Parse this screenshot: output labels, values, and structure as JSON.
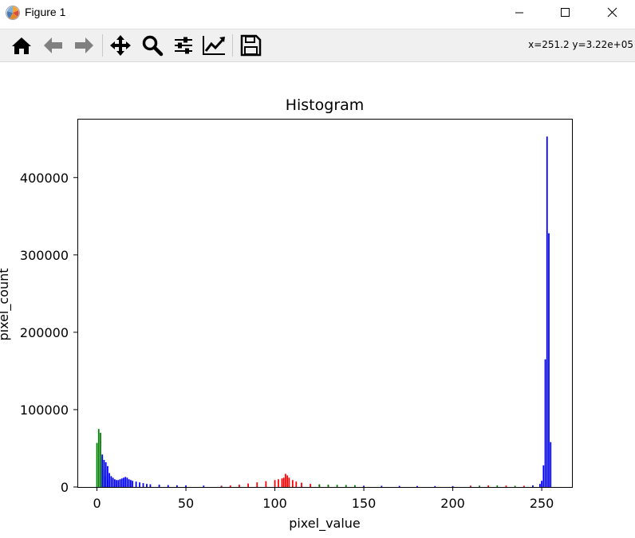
{
  "window": {
    "title": "Figure 1",
    "controls": [
      "minimize",
      "maximize",
      "close"
    ]
  },
  "toolbar": {
    "buttons": [
      "home-icon",
      "back-arrow-icon",
      "forward-arrow-icon",
      "pan-icon",
      "zoom-icon",
      "configure-subplots-icon",
      "edit-axis-icon",
      "save-icon"
    ],
    "coordinates": "x=251.2 y=3.22e+05"
  },
  "chart_data": {
    "type": "bar",
    "title": "Histogram",
    "xlabel": "pixel_value",
    "ylabel": "pixel_count",
    "xlim": [
      -11,
      267
    ],
    "ylim": [
      0,
      476000
    ],
    "xticks": [
      0,
      50,
      100,
      150,
      200,
      250
    ],
    "yticks": [
      0,
      100000,
      200000,
      300000,
      400000
    ],
    "grid": false,
    "legend": "none",
    "series": [
      {
        "color": "#008000",
        "x": [
          0,
          1,
          2,
          3,
          4,
          5,
          6
        ],
        "values": [
          57000,
          75000,
          70000,
          40000,
          22000,
          14000,
          9000
        ]
      },
      {
        "color": "#0000ff",
        "x": [
          3,
          4,
          5,
          6,
          7,
          8,
          9,
          10,
          11,
          12,
          13,
          14,
          15,
          16,
          17,
          18,
          19,
          20,
          22,
          24,
          26,
          28,
          30,
          35,
          40,
          45,
          50,
          60,
          70,
          150,
          160,
          170,
          180,
          190,
          200,
          240,
          245,
          249,
          250,
          251,
          252,
          253,
          254,
          255
        ],
        "values": [
          42000,
          35000,
          32000,
          27000,
          18000,
          14000,
          12000,
          10000,
          9000,
          9000,
          10000,
          11000,
          12000,
          13000,
          12000,
          10000,
          9000,
          8000,
          7000,
          6000,
          5000,
          4000,
          3500,
          3000,
          2500,
          2200,
          2000,
          1800,
          1600,
          1600,
          1500,
          1400,
          1300,
          1200,
          1200,
          1500,
          2000,
          4000,
          8000,
          28000,
          165000,
          453000,
          328000,
          58000
        ]
      },
      {
        "color": "#ff0000",
        "x": [
          70,
          75,
          80,
          85,
          90,
          95,
          100,
          102,
          104,
          105,
          106,
          107,
          108,
          110,
          112,
          115,
          120,
          125,
          130,
          210,
          220,
          230,
          240
        ],
        "values": [
          1200,
          2000,
          3000,
          4500,
          6000,
          7500,
          9000,
          10000,
          11000,
          12000,
          17000,
          15000,
          12000,
          9000,
          7000,
          5500,
          4000,
          3000,
          2200,
          1800,
          2000,
          1800,
          1500
        ]
      },
      {
        "color": "#008000",
        "x": [
          125,
          130,
          135,
          140,
          145,
          215,
          225,
          235
        ],
        "values": [
          3500,
          3000,
          2800,
          2600,
          2400,
          1800,
          2000,
          1600
        ]
      }
    ]
  }
}
